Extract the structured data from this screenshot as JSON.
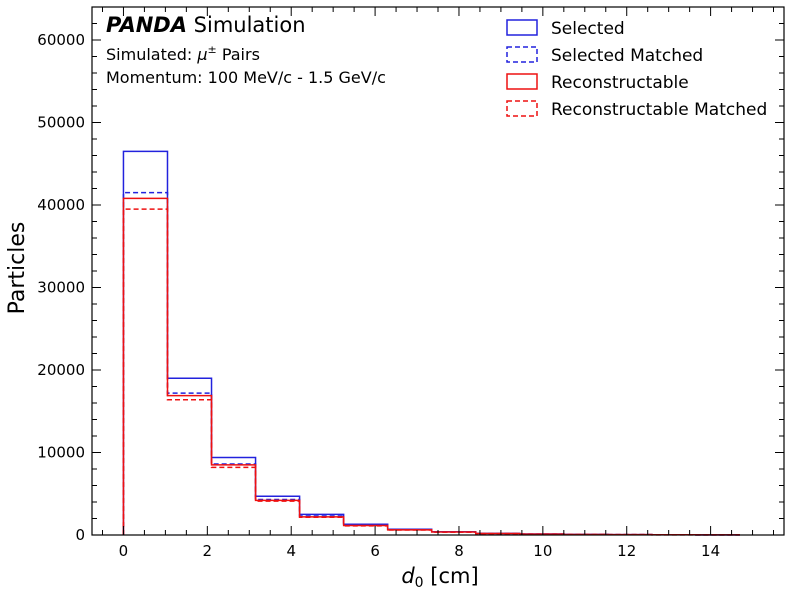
{
  "chart_data": {
    "type": "histogram-step",
    "annotation": {
      "brand": "PANDA",
      "brand_suffix": "Simulation",
      "line1_prefix": "Simulated: ",
      "line1_symbol": "μ",
      "line1_superscript": "±",
      "line1_suffix": " Pairs",
      "line2": "Momentum: 100 MeV/c - 1.5 GeV/c"
    },
    "xlabel_main": "d",
    "xlabel_sub": "0",
    "xlabel_unit": " [cm]",
    "ylabel": "Particles",
    "xlim": [
      -0.75,
      15.75
    ],
    "ylim": [
      0,
      64000
    ],
    "x_ticks": [
      0,
      2,
      4,
      6,
      8,
      10,
      12,
      14
    ],
    "y_ticks": [
      0,
      10000,
      20000,
      30000,
      40000,
      50000,
      60000
    ],
    "bin_edges": [
      0,
      1.05,
      2.1,
      3.15,
      4.2,
      5.25,
      6.3,
      7.35,
      8.4,
      9.45,
      10.5,
      11.55,
      12.6,
      13.65,
      14.7
    ],
    "series": [
      {
        "name": "Selected",
        "color": "#2222dd",
        "dashed": false,
        "values": [
          46500,
          19000,
          9400,
          4700,
          2500,
          1300,
          700,
          400,
          200,
          120,
          80,
          50,
          30,
          20
        ]
      },
      {
        "name": "Selected Matched",
        "color": "#2222dd",
        "dashed": true,
        "values": [
          41500,
          17200,
          8600,
          4300,
          2300,
          1200,
          650,
          370,
          180,
          110,
          70,
          45,
          25,
          15
        ]
      },
      {
        "name": "Reconstructable",
        "color": "#ee1111",
        "dashed": false,
        "values": [
          40800,
          16900,
          8500,
          4200,
          2200,
          1150,
          620,
          360,
          175,
          105,
          68,
          42,
          24,
          14
        ]
      },
      {
        "name": "Reconstructable Matched",
        "color": "#ee1111",
        "dashed": true,
        "values": [
          39500,
          16400,
          8200,
          4100,
          2150,
          1100,
          600,
          350,
          170,
          100,
          65,
          40,
          22,
          13
        ]
      }
    ],
    "legend_position": "top-right"
  }
}
